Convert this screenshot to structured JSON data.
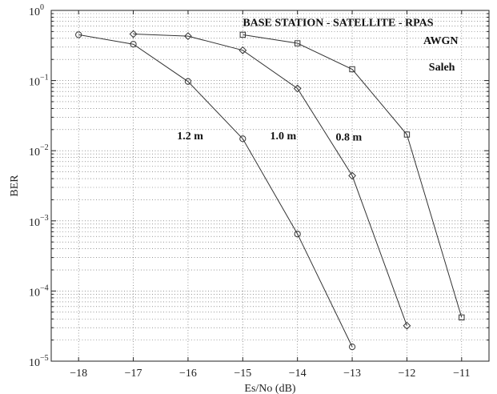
{
  "chart_data": {
    "type": "line",
    "xlabel": "Es/No (dB)",
    "ylabel": "BER",
    "xlim": [
      -18.5,
      -10.5
    ],
    "ylim": [
      1e-05,
      1
    ],
    "y_scale": "log",
    "grid": true,
    "x_ticks": [
      -18,
      -17,
      -16,
      -15,
      -14,
      -13,
      -12,
      -11
    ],
    "x_tick_labels": [
      "−18",
      "−17",
      "−16",
      "−15",
      "−14",
      "−13",
      "−12",
      "−11"
    ],
    "y_ticks": [
      {
        "value": 1,
        "base": "10",
        "exp": "0"
      },
      {
        "value": 0.1,
        "base": "10",
        "exp": "−1"
      },
      {
        "value": 0.01,
        "base": "10",
        "exp": "−2"
      },
      {
        "value": 0.001,
        "base": "10",
        "exp": "−3"
      },
      {
        "value": 0.0001,
        "base": "10",
        "exp": "−4"
      },
      {
        "value": 1e-05,
        "base": "10",
        "exp": "−5"
      }
    ],
    "series": [
      {
        "marker": "circle",
        "x": [
          -18,
          -17,
          -16,
          -15,
          -14,
          -13
        ],
        "values": [
          0.45,
          0.33,
          0.097,
          0.0148,
          0.00065,
          1.6e-05
        ]
      },
      {
        "marker": "diamond",
        "x": [
          -17,
          -16,
          -15,
          -14,
          -13,
          -12
        ],
        "values": [
          0.46,
          0.43,
          0.27,
          0.077,
          0.0044,
          3.2e-05
        ]
      },
      {
        "marker": "square",
        "x": [
          -15,
          -14,
          -13,
          -12,
          -11
        ],
        "values": [
          0.45,
          0.34,
          0.145,
          0.017,
          4.2e-05
        ]
      }
    ],
    "annotations": [
      {
        "text": "BASE STATION - SATELLITE - RPAS",
        "x": -15,
        "y": 0.6
      },
      {
        "text": "AWGN",
        "x": -11.7,
        "y": 0.33
      },
      {
        "text": "Saleh",
        "x": -11.6,
        "y": 0.14
      },
      {
        "text": "1.2 m",
        "x": -16.2,
        "y": 0.0145
      },
      {
        "text": "1.0 m",
        "x": -14.5,
        "y": 0.0145
      },
      {
        "text": "0.8 m",
        "x": -13.3,
        "y": 0.014
      }
    ]
  }
}
